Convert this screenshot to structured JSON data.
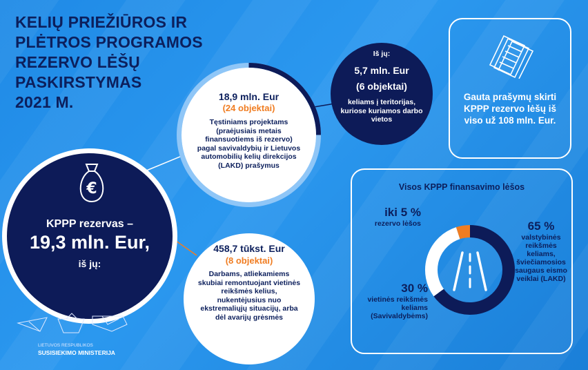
{
  "title": {
    "line1": "KELIŲ PRIEŽIŪROS IR",
    "line2": "PLĖTROS PROGRAMOS",
    "line3": "REZERVO LĖŠŲ",
    "line4": "PASKIRSTYMAS",
    "line5": "2021 M."
  },
  "reserve": {
    "icon": "money-bag-euro-icon",
    "label": "KPPP rezervas –",
    "amount": "19,3 mln. Eur,",
    "suffix": "iš jų:"
  },
  "continuing": {
    "amount": "18,9 mln. Eur",
    "count": "(24 objektai)",
    "description": "Tęstiniams projektams (praėjusiais metais finansuotiems iš rezervo) pagal savivaldybių ir Lietuvos automobilių kelių direkcijos (LAKD) prašymus"
  },
  "subset": {
    "prefix": "Iš jų:",
    "amount": "5,7 mln. Eur",
    "count": "(6 objektai)",
    "description": "keliams į teritorijas, kuriose kuriamos darbo vietos"
  },
  "emergency": {
    "amount": "458,7 tūkst. Eur",
    "count": "(8 objektai)",
    "description": "Darbams, atliekamiems skubiai remontuojant vietinės reikšmės kelius, nukentėjusius nuo ekstremaliųjų situacijų, arba dėl avarijų grėsmės"
  },
  "requests": {
    "icon": "documents-icon",
    "text": "Gauta prašymų skirti KPPP rezervo lėšų  iš viso už 108 mln. Eur."
  },
  "funding": {
    "title": "Visos KPPP finansavimo lėšos",
    "center_icon": "road-icon",
    "segments": [
      {
        "percent_label": "iki 5 %",
        "value": 5,
        "label": "rezervo lėšos",
        "color": "#f07d22"
      },
      {
        "percent_label": "30 %",
        "value": 30,
        "label": "vietinės reikšmės keliams (Savivaldybėms)",
        "color": "#ffffff"
      },
      {
        "percent_label": "65 %",
        "value": 65,
        "label": "valstybinės reikšmės keliams, šviečiamosios saugaus eismo veiklai (LAKD)",
        "color": "#0d1b58"
      }
    ]
  },
  "logo": {
    "icon": "ministry-logo-icon",
    "line1": "LIETUVOS RESPUBLIKOS",
    "line2": "SUSISIEKIMO MINISTERIJA"
  },
  "colors": {
    "navy": "#0d1b58",
    "orange": "#f07d22",
    "background": "#2b98ef"
  }
}
